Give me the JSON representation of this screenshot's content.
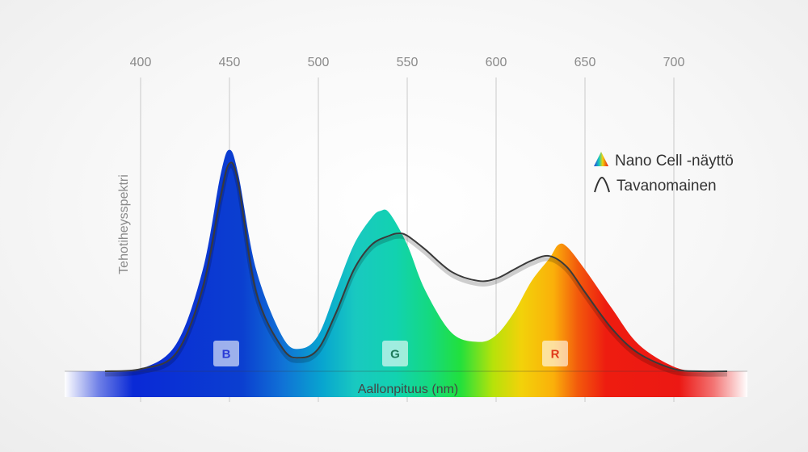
{
  "chart_data": {
    "type": "area",
    "x_ticks": [
      400,
      450,
      500,
      550,
      600,
      650,
      700
    ],
    "xlabel": "Aallonpituus (nm)",
    "ylabel": "Tehotiheysspektri",
    "legend": {
      "position": "top-right"
    },
    "grid": true,
    "series": [
      {
        "name": "Nano Cell -näyttö",
        "x": [
          380,
          400,
          420,
          435,
          445,
          450,
          455,
          465,
          480,
          490,
          500,
          510,
          520,
          530,
          535,
          540,
          550,
          560,
          575,
          590,
          600,
          610,
          620,
          630,
          635,
          640,
          650,
          665,
          680,
          700,
          715,
          730
        ],
        "y": [
          0.0,
          0.01,
          0.12,
          0.45,
          0.87,
          0.98,
          0.87,
          0.45,
          0.15,
          0.1,
          0.16,
          0.36,
          0.56,
          0.68,
          0.71,
          0.7,
          0.56,
          0.36,
          0.17,
          0.13,
          0.16,
          0.26,
          0.4,
          0.5,
          0.56,
          0.55,
          0.45,
          0.28,
          0.12,
          0.02,
          0.0,
          0.0
        ],
        "style": "spectrum-filled"
      },
      {
        "name": "Tavanomainen",
        "x": [
          380,
          400,
          420,
          435,
          445,
          450,
          455,
          465,
          480,
          490,
          500,
          510,
          520,
          530,
          540,
          545,
          550,
          560,
          575,
          590,
          600,
          610,
          620,
          630,
          640,
          650,
          665,
          680,
          700,
          715,
          730
        ],
        "y": [
          0.0,
          0.01,
          0.08,
          0.37,
          0.77,
          0.92,
          0.83,
          0.35,
          0.1,
          0.06,
          0.1,
          0.26,
          0.45,
          0.56,
          0.6,
          0.61,
          0.6,
          0.54,
          0.44,
          0.4,
          0.41,
          0.45,
          0.49,
          0.51,
          0.46,
          0.35,
          0.19,
          0.08,
          0.01,
          0.0,
          0.0
        ],
        "style": "dark-line"
      }
    ],
    "bands": [
      {
        "label": "B",
        "x": 450,
        "color": "#2a3bd6"
      },
      {
        "label": "G",
        "x": 545,
        "color": "#1e7a5a"
      },
      {
        "label": "R",
        "x": 635,
        "color": "#e03a1a"
      }
    ]
  },
  "colors": {
    "grid": "#c9c9c9",
    "line": "#3a3a3a",
    "axis_strip": "spectrum"
  },
  "legend_icons": {
    "nano": "rainbow-triangle-icon",
    "conventional": "curve-outline-icon"
  }
}
